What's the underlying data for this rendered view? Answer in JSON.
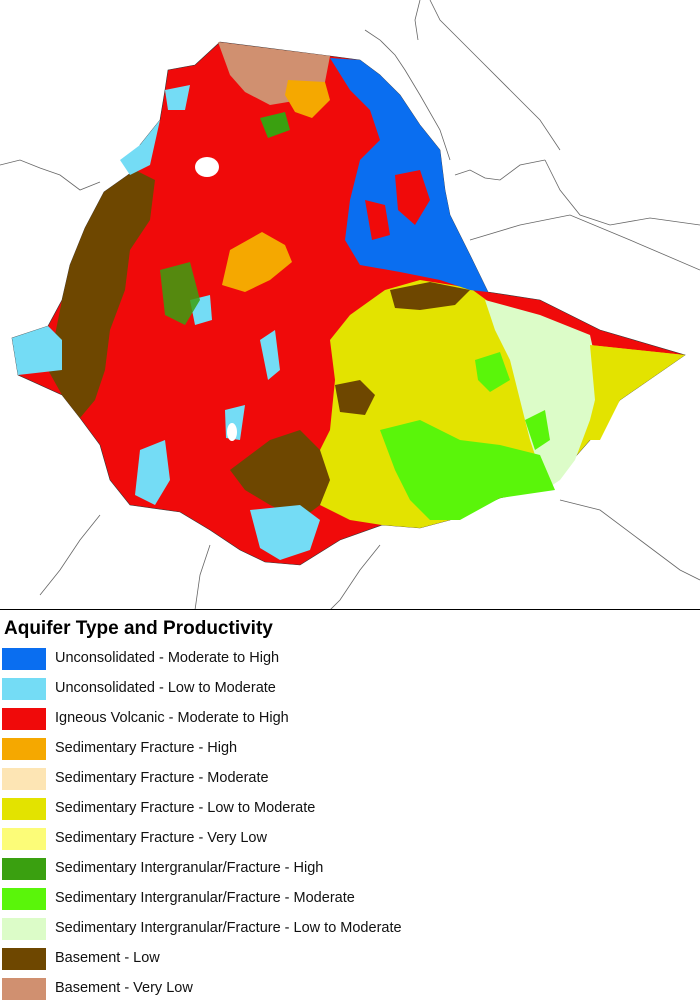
{
  "legend": {
    "title": "Aquifer Type and Productivity",
    "items": [
      {
        "label": "Unconsolidated - Moderate to High",
        "color": "#0a6ef0"
      },
      {
        "label": "Unconsolidated - Low to Moderate",
        "color": "#74dcf5"
      },
      {
        "label": "Igneous Volcanic - Moderate to High",
        "color": "#f00a0a"
      },
      {
        "label": "Sedimentary Fracture - High",
        "color": "#f5a800"
      },
      {
        "label": "Sedimentary Fracture - Moderate",
        "color": "#fde5b4"
      },
      {
        "label": "Sedimentary Fracture - Low to Moderate",
        "color": "#e3e300"
      },
      {
        "label": "Sedimentary Fracture - Very Low",
        "color": "#fcfc78"
      },
      {
        "label": "Sedimentary Intergranular/Fracture - High",
        "color": "#3aa010"
      },
      {
        "label": "Sedimentary Intergranular/Fracture - Moderate",
        "color": "#5af50a"
      },
      {
        "label": "Sedimentary Intergranular/Fracture - Low to Moderate",
        "color": "#dcfcc8"
      },
      {
        "label": "Basement - Low",
        "color": "#6e4700"
      },
      {
        "label": "Basement - Very Low",
        "color": "#d09070"
      }
    ]
  }
}
